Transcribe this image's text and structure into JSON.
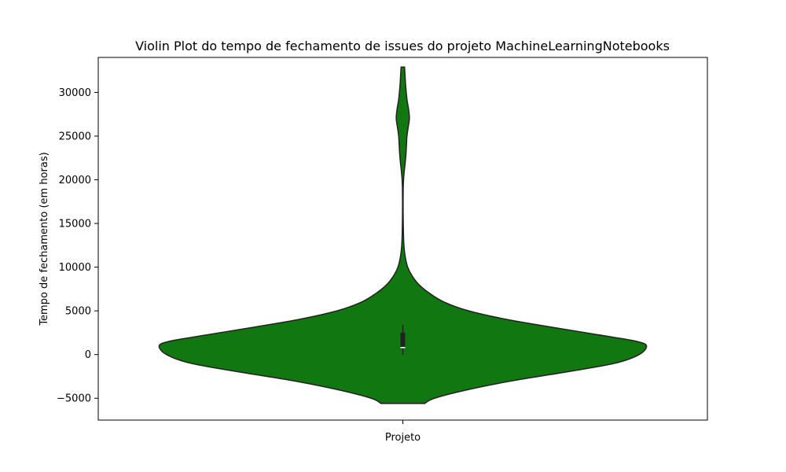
{
  "chart_data": {
    "type": "violin",
    "title": "Violin Plot do tempo de fechamento de issues do projeto MachineLearningNotebooks",
    "xlabel": "",
    "ylabel": "Tempo de fechamento (em horas)",
    "categories": [
      "Projeto"
    ],
    "ylim": [
      -7500,
      34000
    ],
    "yticks": [
      -5000,
      0,
      5000,
      10000,
      15000,
      20000,
      25000,
      30000
    ],
    "ytick_labels": [
      "−5000",
      "0",
      "5000",
      "10000",
      "15000",
      "20000",
      "25000",
      "30000"
    ],
    "grid": false,
    "colors": {
      "fill": "#117711",
      "edge": "#222222",
      "box": "#222222",
      "median": "#ffffff"
    },
    "violin": {
      "category": "Projeto",
      "min": -5600,
      "max": 32900,
      "density": [
        [
          -5600,
          0.09
        ],
        [
          -5000,
          0.13
        ],
        [
          -4000,
          0.27
        ],
        [
          -3000,
          0.45
        ],
        [
          -2000,
          0.67
        ],
        [
          -1000,
          0.87
        ],
        [
          0,
          0.97
        ],
        [
          1000,
          1.0
        ],
        [
          1500,
          0.96
        ],
        [
          2000,
          0.86
        ],
        [
          3000,
          0.64
        ],
        [
          4000,
          0.43
        ],
        [
          5000,
          0.27
        ],
        [
          6000,
          0.17
        ],
        [
          7000,
          0.11
        ],
        [
          8000,
          0.066
        ],
        [
          9000,
          0.038
        ],
        [
          10000,
          0.02
        ],
        [
          11000,
          0.011
        ],
        [
          12000,
          0.006
        ],
        [
          13000,
          0.0035
        ],
        [
          15000,
          0.0018
        ],
        [
          17000,
          0.0012
        ],
        [
          19000,
          0.0016
        ],
        [
          20000,
          0.003
        ],
        [
          21000,
          0.006
        ],
        [
          22000,
          0.01
        ],
        [
          23000,
          0.013
        ],
        [
          24000,
          0.015
        ],
        [
          25000,
          0.017
        ],
        [
          26000,
          0.022
        ],
        [
          27000,
          0.027
        ],
        [
          28000,
          0.024
        ],
        [
          29000,
          0.018
        ],
        [
          30000,
          0.014
        ],
        [
          31000,
          0.011
        ],
        [
          32000,
          0.009
        ],
        [
          32900,
          0.007
        ]
      ],
      "box": {
        "q1": 700,
        "median": 800,
        "q3": 2500,
        "whisker_low": 0,
        "whisker_high": 3400
      }
    }
  }
}
